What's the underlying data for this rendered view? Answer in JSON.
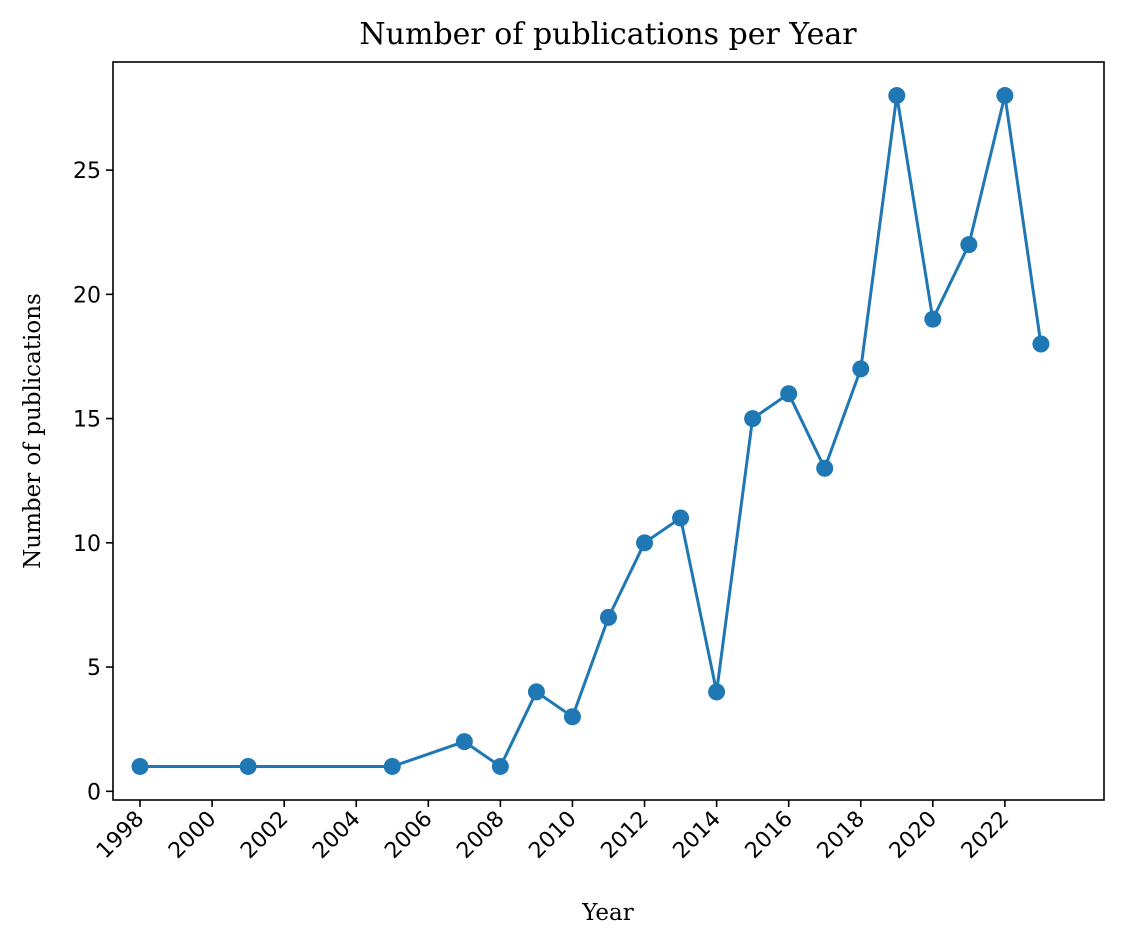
{
  "chart_data": {
    "type": "line",
    "title": "Number of publications per Year",
    "xlabel": "Year",
    "ylabel": "Number of publications",
    "xlim": [
      1997.25,
      2024.75
    ],
    "ylim": [
      -0.35,
      29.35
    ],
    "x_ticks": [
      "1998",
      "2000",
      "2002",
      "2004",
      "2006",
      "2008",
      "2010",
      "2012",
      "2014",
      "2016",
      "2018",
      "2020",
      "2022"
    ],
    "y_ticks": [
      "0",
      "5",
      "10",
      "15",
      "20",
      "25"
    ],
    "grid": false,
    "legend": "none",
    "series": [
      {
        "color": "#1f77b4",
        "marker": "circle",
        "x": [
          1998,
          2001,
          2005,
          2007,
          2008,
          2009,
          2010,
          2011,
          2012,
          2013,
          2014,
          2015,
          2016,
          2017,
          2018,
          2019,
          2020,
          2021,
          2022,
          2023
        ],
        "y": [
          1,
          1,
          1,
          2,
          1,
          4,
          3,
          7,
          10,
          11,
          4,
          15,
          16,
          13,
          17,
          28,
          19,
          22,
          28,
          18
        ]
      }
    ]
  }
}
